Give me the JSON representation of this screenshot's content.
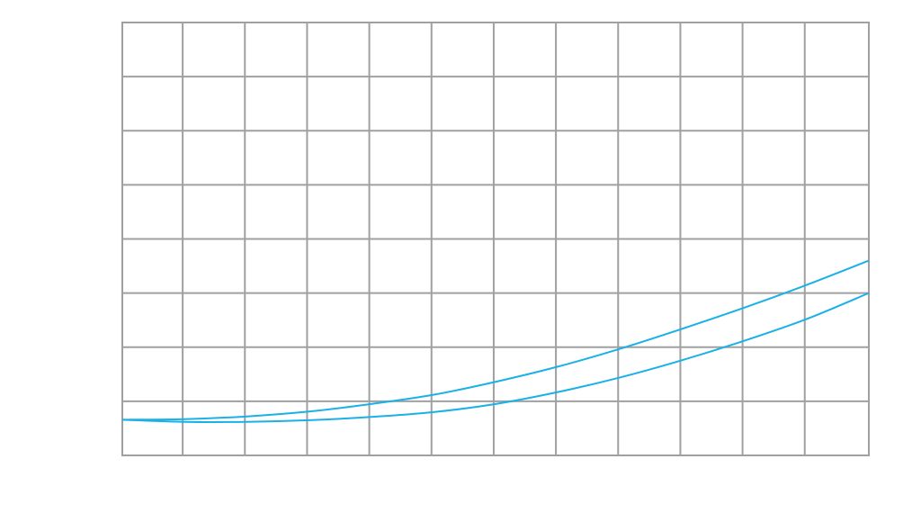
{
  "chart_data": {
    "type": "line",
    "title": "",
    "xlabel": "",
    "ylabel": "",
    "grid": true,
    "legend": "none",
    "xlim": [
      0,
      12
    ],
    "ylim": [
      0,
      8
    ],
    "x_gridlines": [
      0,
      0.97,
      1.97,
      2.97,
      3.97,
      4.97,
      5.97,
      6.97,
      7.97,
      8.97,
      9.97,
      10.97,
      12
    ],
    "y_gridlines": [
      0,
      1,
      2,
      3,
      4,
      5,
      6,
      7,
      8
    ],
    "color": "#1ab0e8",
    "series": [
      {
        "x": [
          0,
          1,
          2,
          3,
          4,
          5,
          6,
          7,
          8,
          9,
          10,
          11,
          12
        ],
        "y": [
          0.66,
          0.67,
          0.72,
          0.81,
          0.95,
          1.12,
          1.36,
          1.64,
          1.97,
          2.34,
          2.73,
          3.15,
          3.6
        ]
      },
      {
        "x": [
          0,
          1,
          2,
          3,
          4,
          5,
          6,
          7,
          8,
          9,
          10,
          11,
          12
        ],
        "y": [
          0.66,
          0.62,
          0.62,
          0.65,
          0.71,
          0.8,
          0.95,
          1.17,
          1.44,
          1.76,
          2.12,
          2.52,
          3.0
        ]
      }
    ]
  }
}
